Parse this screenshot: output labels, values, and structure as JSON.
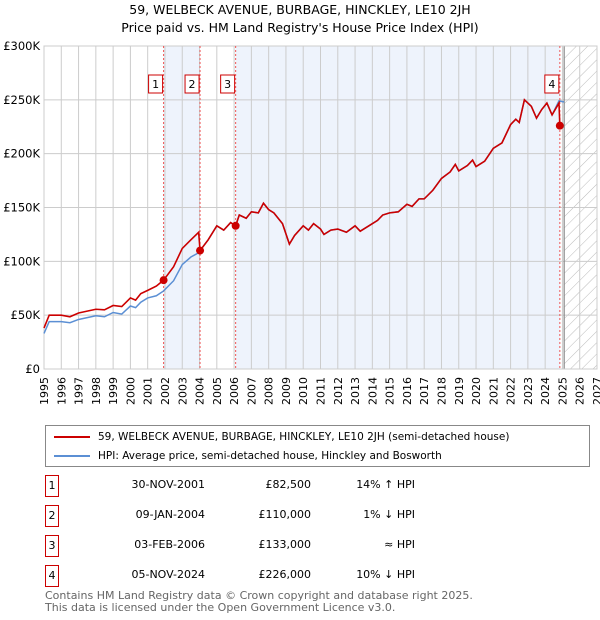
{
  "chart_data": {
    "type": "line",
    "title": "59, WELBECK AVENUE, BURBAGE, HINCKLEY, LE10 2JH",
    "subtitle": "Price paid vs. HM Land Registry's House Price Index (HPI)",
    "xlim": [
      1995,
      2027
    ],
    "ylim": [
      0,
      300000
    ],
    "x_ticks": [
      "1995",
      "1996",
      "1997",
      "1998",
      "1999",
      "2000",
      "2001",
      "2002",
      "2003",
      "2004",
      "2005",
      "2006",
      "2007",
      "2008",
      "2009",
      "2010",
      "2011",
      "2012",
      "2013",
      "2014",
      "2015",
      "2016",
      "2017",
      "2018",
      "2019",
      "2020",
      "2021",
      "2022",
      "2023",
      "2024",
      "2025",
      "2026",
      "2027"
    ],
    "y_ticks": [
      {
        "v": 0,
        "label": "£0"
      },
      {
        "v": 50000,
        "label": "£50K"
      },
      {
        "v": 100000,
        "label": "£100K"
      },
      {
        "v": 150000,
        "label": "£150K"
      },
      {
        "v": 200000,
        "label": "£200K"
      },
      {
        "v": 250000,
        "label": "£250K"
      },
      {
        "v": 300000,
        "label": "£300K"
      }
    ],
    "grid": true,
    "shaded_periods": [
      [
        2001.92,
        2004.03
      ],
      [
        2006.09,
        2024.85
      ]
    ],
    "forecast_hatch": [
      2025.1,
      2027
    ],
    "series": [
      {
        "name": "59, WELBECK AVENUE, BURBAGE, HINCKLEY, LE10 2JH (semi-detached house)",
        "color": "#cc0000",
        "points": [
          [
            1995,
            38000
          ],
          [
            1995.3,
            50000
          ],
          [
            1996,
            50000
          ],
          [
            1996.5,
            48500
          ],
          [
            1997,
            52000
          ],
          [
            1998,
            55500
          ],
          [
            1998.5,
            55000
          ],
          [
            1999,
            59000
          ],
          [
            1999.5,
            58000
          ],
          [
            2000,
            66000
          ],
          [
            2000.3,
            64000
          ],
          [
            2000.6,
            70000
          ],
          [
            2001,
            73000
          ],
          [
            2001.5,
            77000
          ],
          [
            2001.92,
            82500
          ],
          [
            2002.5,
            95000
          ],
          [
            2003,
            112000
          ],
          [
            2003.5,
            120000
          ],
          [
            2003.95,
            127000
          ],
          [
            2004.03,
            110000
          ],
          [
            2004.5,
            120000
          ],
          [
            2005,
            133000
          ],
          [
            2005.4,
            129000
          ],
          [
            2005.8,
            136000
          ],
          [
            2006.09,
            133000
          ],
          [
            2006.3,
            143000
          ],
          [
            2006.7,
            140000
          ],
          [
            2007,
            146000
          ],
          [
            2007.4,
            145000
          ],
          [
            2007.7,
            154000
          ],
          [
            2008,
            148000
          ],
          [
            2008.3,
            145000
          ],
          [
            2008.8,
            135000
          ],
          [
            2009.2,
            116000
          ],
          [
            2009.5,
            124000
          ],
          [
            2010,
            133000
          ],
          [
            2010.3,
            129000
          ],
          [
            2010.6,
            135000
          ],
          [
            2011,
            130000
          ],
          [
            2011.2,
            125000
          ],
          [
            2011.6,
            129000
          ],
          [
            2012,
            130000
          ],
          [
            2012.5,
            127000
          ],
          [
            2013,
            133000
          ],
          [
            2013.3,
            128000
          ],
          [
            2013.8,
            133000
          ],
          [
            2014.3,
            138000
          ],
          [
            2014.6,
            143000
          ],
          [
            2015,
            145000
          ],
          [
            2015.5,
            146000
          ],
          [
            2016,
            153000
          ],
          [
            2016.3,
            151000
          ],
          [
            2016.7,
            158000
          ],
          [
            2017,
            158000
          ],
          [
            2017.5,
            166000
          ],
          [
            2018,
            177000
          ],
          [
            2018.5,
            183000
          ],
          [
            2018.8,
            190000
          ],
          [
            2019,
            184000
          ],
          [
            2019.5,
            189000
          ],
          [
            2019.8,
            194000
          ],
          [
            2020,
            188000
          ],
          [
            2020.5,
            193000
          ],
          [
            2021,
            205000
          ],
          [
            2021.5,
            210000
          ],
          [
            2022,
            227000
          ],
          [
            2022.3,
            232000
          ],
          [
            2022.5,
            229000
          ],
          [
            2022.8,
            250000
          ],
          [
            2023.2,
            244000
          ],
          [
            2023.5,
            233000
          ],
          [
            2023.8,
            241000
          ],
          [
            2024.1,
            247000
          ],
          [
            2024.4,
            236000
          ],
          [
            2024.8,
            247000
          ],
          [
            2024.85,
            226000
          ]
        ]
      },
      {
        "name": "HPI: Average price, semi-detached house, Hinckley and Bosworth",
        "color": "#5b8fd4",
        "points": [
          [
            1995,
            33000
          ],
          [
            1995.3,
            44000
          ],
          [
            1996,
            44000
          ],
          [
            1996.5,
            43000
          ],
          [
            1997,
            46000
          ],
          [
            1998,
            49500
          ],
          [
            1998.5,
            48500
          ],
          [
            1999,
            52500
          ],
          [
            1999.5,
            51000
          ],
          [
            2000,
            58500
          ],
          [
            2000.3,
            57000
          ],
          [
            2000.6,
            62000
          ],
          [
            2001,
            66000
          ],
          [
            2001.5,
            68000
          ],
          [
            2001.92,
            72500
          ],
          [
            2002.5,
            82000
          ],
          [
            2003,
            97000
          ],
          [
            2003.5,
            104000
          ],
          [
            2003.95,
            108000
          ],
          [
            2004.03,
            110000
          ],
          [
            2004.5,
            120000
          ],
          [
            2005,
            133000
          ],
          [
            2005.4,
            129000
          ],
          [
            2005.8,
            136000
          ],
          [
            2006.09,
            133000
          ],
          [
            2006.3,
            143000
          ],
          [
            2006.7,
            140000
          ],
          [
            2007,
            146000
          ],
          [
            2007.4,
            145000
          ],
          [
            2007.7,
            154000
          ],
          [
            2008,
            148000
          ],
          [
            2008.3,
            145000
          ],
          [
            2008.8,
            135000
          ],
          [
            2009.2,
            116000
          ],
          [
            2009.5,
            124000
          ],
          [
            2010,
            133000
          ],
          [
            2010.3,
            129000
          ],
          [
            2010.6,
            135000
          ],
          [
            2011,
            130000
          ],
          [
            2011.2,
            125000
          ],
          [
            2011.6,
            129000
          ],
          [
            2012,
            130000
          ],
          [
            2012.5,
            127000
          ],
          [
            2013,
            133000
          ],
          [
            2013.3,
            128000
          ],
          [
            2013.8,
            133000
          ],
          [
            2014.3,
            138000
          ],
          [
            2014.6,
            143000
          ],
          [
            2015,
            145000
          ],
          [
            2015.5,
            146000
          ],
          [
            2016,
            153000
          ],
          [
            2016.3,
            151000
          ],
          [
            2016.7,
            158000
          ],
          [
            2017,
            158000
          ],
          [
            2017.5,
            166000
          ],
          [
            2018,
            177000
          ],
          [
            2018.5,
            183000
          ],
          [
            2018.8,
            190000
          ],
          [
            2019,
            184000
          ],
          [
            2019.5,
            189000
          ],
          [
            2019.8,
            194000
          ],
          [
            2020,
            188000
          ],
          [
            2020.5,
            193000
          ],
          [
            2021,
            205000
          ],
          [
            2021.5,
            210000
          ],
          [
            2022,
            227000
          ],
          [
            2022.3,
            232000
          ],
          [
            2022.5,
            229000
          ],
          [
            2022.8,
            250000
          ],
          [
            2023.2,
            244000
          ],
          [
            2023.5,
            233000
          ],
          [
            2023.8,
            241000
          ],
          [
            2024.1,
            247000
          ],
          [
            2024.4,
            236000
          ],
          [
            2024.8,
            249000
          ],
          [
            2025.1,
            248000
          ]
        ]
      }
    ],
    "sales": [
      {
        "n": "1",
        "x": 2001.92,
        "price": 82500,
        "date": "30-NOV-2001",
        "price_label": "£82,500",
        "hpi": "14% ↑ HPI"
      },
      {
        "n": "2",
        "x": 2004.03,
        "price": 110000,
        "date": "09-JAN-2004",
        "price_label": "£110,000",
        "hpi": "1% ↓ HPI"
      },
      {
        "n": "3",
        "x": 2006.09,
        "price": 133000,
        "date": "03-FEB-2006",
        "price_label": "£133,000",
        "hpi": "≈ HPI"
      },
      {
        "n": "4",
        "x": 2024.85,
        "price": 226000,
        "date": "05-NOV-2024",
        "price_label": "£226,000",
        "hpi": "10% ↓ HPI"
      }
    ]
  },
  "footer": {
    "line1": "Contains HM Land Registry data © Crown copyright and database right 2025.",
    "line2": "This data is licensed under the Open Government Licence v3.0."
  }
}
